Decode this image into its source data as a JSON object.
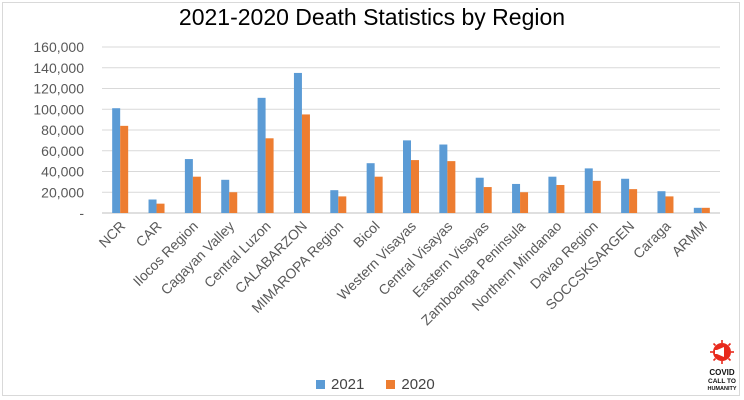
{
  "chart_data": {
    "type": "bar",
    "title": "2021-2020 Death Statistics by Region",
    "xlabel": "",
    "ylabel": "",
    "ylim": [
      0,
      160000
    ],
    "yticks": [
      "-",
      "20,000",
      "40,000",
      "60,000",
      "80,000",
      "100,000",
      "120,000",
      "140,000",
      "160,000"
    ],
    "grid": true,
    "legend_position": "bottom",
    "categories": [
      "NCR",
      "CAR",
      "Ilocos Region",
      "Cagayan Valley",
      "Central Luzon",
      "CALABARZON",
      "MIMAROPA Region",
      "Bicol",
      "Western Visayas",
      "Central Visayas",
      "Eastern Visayas",
      "Zamboanga Peninsula",
      "Northern Mindanao",
      "Davao Region",
      "SOCCSKSARGEN",
      "Caraga",
      "ARMM"
    ],
    "series": [
      {
        "name": "2021",
        "color": "#5b9bd5",
        "values": [
          101000,
          13000,
          52000,
          32000,
          111000,
          135000,
          22000,
          48000,
          70000,
          66000,
          34000,
          28000,
          35000,
          43000,
          33000,
          21000,
          5000
        ]
      },
      {
        "name": "2020",
        "color": "#ed7d31",
        "values": [
          84000,
          9000,
          35000,
          20000,
          72000,
          95000,
          16000,
          35000,
          51000,
          50000,
          25000,
          20000,
          27000,
          31000,
          23000,
          16000,
          5000
        ]
      }
    ]
  },
  "logo": {
    "line1": "COVID",
    "line2": "CALL TO",
    "line3": "HUMANITY",
    "icon": "megaphone-virus-icon",
    "color": "#e8291c"
  }
}
